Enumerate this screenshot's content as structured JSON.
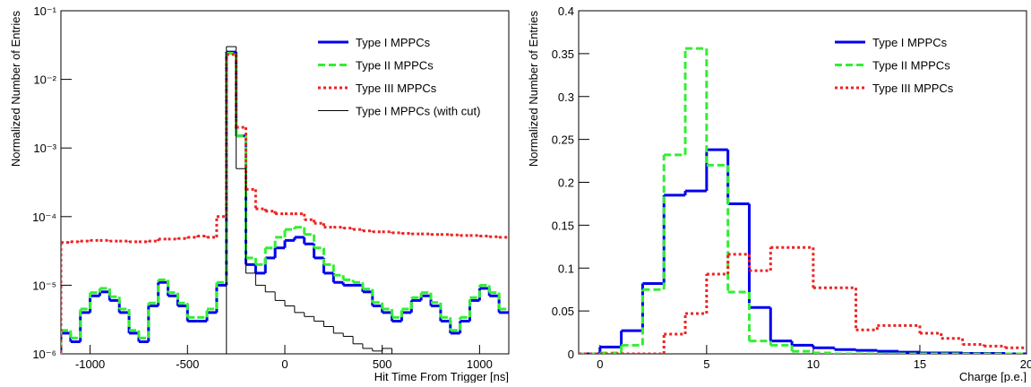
{
  "chart_data": [
    {
      "type": "histogram",
      "log_y": true,
      "x_label": "Hit Time From Trigger [ns]",
      "y_label": "Normalized Number of Entries",
      "xlim": [
        -1150,
        1150
      ],
      "xticks": [
        -1000,
        -500,
        0,
        500,
        1000
      ],
      "ylim": [
        1e-06,
        0.1
      ],
      "yticks": [
        {
          "value": 1e-06,
          "label": "10⁻⁶"
        },
        {
          "value": 1e-05,
          "label": "10⁻⁵"
        },
        {
          "value": 0.0001,
          "label": "10⁻⁴"
        },
        {
          "value": 0.001,
          "label": "10⁻³"
        },
        {
          "value": 0.01,
          "label": "10⁻²"
        },
        {
          "value": 0.1,
          "label": "10⁻¹"
        }
      ],
      "legend": "top-right",
      "bins": [
        -1150,
        -1100,
        -1050,
        -1000,
        -950,
        -900,
        -850,
        -800,
        -750,
        -700,
        -650,
        -600,
        -550,
        -500,
        -450,
        -400,
        -350,
        -300,
        -250,
        -200,
        -150,
        -100,
        -50,
        0,
        50,
        100,
        150,
        200,
        250,
        300,
        350,
        400,
        450,
        500,
        550,
        600,
        650,
        700,
        750,
        800,
        850,
        900,
        950,
        1000,
        1050,
        1100,
        1150
      ],
      "series": [
        {
          "name": "Type I MPPCs",
          "color": "#0000ee",
          "line_style": "solid",
          "width": 3,
          "values": [
            2e-06,
            1.5e-06,
            4e-06,
            7e-06,
            8e-06,
            6e-06,
            4e-06,
            2e-06,
            1.5e-06,
            5e-06,
            1.1e-05,
            7e-06,
            5e-06,
            3e-06,
            3e-06,
            4e-06,
            1e-05,
            0.025,
            0.0015,
            2e-05,
            1.5e-05,
            2.5e-05,
            3.5e-05,
            4.5e-05,
            5e-05,
            4e-05,
            2.5e-05,
            1.5e-05,
            1.1e-05,
            1e-05,
            1e-05,
            8e-06,
            5e-06,
            4e-06,
            3e-06,
            4e-06,
            6e-06,
            7e-06,
            5e-06,
            3e-06,
            2e-06,
            3e-06,
            6e-06,
            9e-06,
            7e-06,
            4e-06
          ]
        },
        {
          "name": "Type II MPPCs",
          "color": "#33ee33",
          "line_style": "dashed",
          "width": 3,
          "values": [
            2.2e-06,
            1.7e-06,
            4.5e-06,
            7.8e-06,
            9e-06,
            6.8e-06,
            4.5e-06,
            2.2e-06,
            1.7e-06,
            5.5e-06,
            1.2e-05,
            7.8e-06,
            5.5e-06,
            3.4e-06,
            3.4e-06,
            4.5e-06,
            1.1e-05,
            0.024,
            0.0015,
            2.5e-05,
            2e-05,
            3.5e-05,
            5e-05,
            6.5e-05,
            7e-05,
            5.5e-05,
            3.5e-05,
            2e-05,
            1.4e-05,
            1.2e-05,
            1.1e-05,
            8.8e-06,
            5.6e-06,
            4.5e-06,
            3.4e-06,
            4.5e-06,
            6.6e-06,
            7.8e-06,
            5.6e-06,
            3.4e-06,
            2.2e-06,
            3.4e-06,
            6.6e-06,
            1e-05,
            7.8e-06,
            4.5e-06
          ]
        },
        {
          "name": "Type III MPPCs",
          "color": "#ee2222",
          "line_style": "dotted",
          "width": 3,
          "values": [
            4.2e-05,
            4.3e-05,
            4.4e-05,
            4.5e-05,
            4.5e-05,
            4.4e-05,
            4.4e-05,
            4.3e-05,
            4.3e-05,
            4.4e-05,
            4.7e-05,
            4.7e-05,
            4.8e-05,
            5e-05,
            5.2e-05,
            5e-05,
            0.0001,
            0.023,
            0.002,
            0.00025,
            0.00013,
            0.00012,
            0.00011,
            0.00011,
            0.00011,
            9e-05,
            8e-05,
            7e-05,
            7e-05,
            6.8e-05,
            6.5e-05,
            6.2e-05,
            6e-05,
            6e-05,
            5.8e-05,
            5.7e-05,
            5.6e-05,
            5.6e-05,
            5.5e-05,
            5.5e-05,
            5.4e-05,
            5.3e-05,
            5.3e-05,
            5.2e-05,
            5.1e-05,
            5e-05
          ]
        },
        {
          "name": "Type I MPPCs (with cut)",
          "color": "#000000",
          "line_style": "solid",
          "width": 1,
          "values": [
            null,
            null,
            null,
            null,
            null,
            null,
            null,
            null,
            null,
            null,
            null,
            null,
            null,
            null,
            null,
            null,
            null,
            0.03,
            0.0005,
            1.5e-05,
            1e-05,
            8e-06,
            6e-06,
            5e-06,
            4e-06,
            3.5e-06,
            3e-06,
            2.5e-06,
            2e-06,
            1.8e-06,
            1.4e-06,
            1.2e-06,
            1.1e-06,
            1.2e-06,
            1e-06,
            null,
            null,
            null,
            null,
            null,
            null,
            null,
            null,
            null,
            null,
            null
          ]
        }
      ]
    },
    {
      "type": "histogram",
      "log_y": false,
      "x_label": "Charge [p.e.]",
      "y_label": "Normalized Number of Entries",
      "xlim": [
        -1,
        20
      ],
      "xticks": [
        0,
        5,
        10,
        15,
        20
      ],
      "ylim": [
        0,
        0.4
      ],
      "yticks": [
        0,
        0.05,
        0.1,
        0.15,
        0.2,
        0.25,
        0.3,
        0.35,
        0.4
      ],
      "legend": "top-right",
      "bins": [
        -1,
        0,
        1,
        2,
        3,
        4,
        5,
        6,
        7,
        8,
        9,
        10,
        11,
        12,
        13,
        14,
        15,
        16,
        17,
        18,
        19,
        20
      ],
      "series": [
        {
          "name": "Type I MPPCs",
          "color": "#0000ee",
          "line_style": "solid",
          "width": 3,
          "values": [
            0,
            0.008,
            0.027,
            0.082,
            0.185,
            0.19,
            0.238,
            0.175,
            0.054,
            0.015,
            0.01,
            0.007,
            0.005,
            0.004,
            0.003,
            0.002,
            0.001,
            0.001,
            0.0005,
            0.0005,
            0
          ]
        },
        {
          "name": "Type II MPPCs",
          "color": "#33ee33",
          "line_style": "dashed",
          "width": 3,
          "values": [
            0,
            0.001,
            0.01,
            0.075,
            0.232,
            0.356,
            0.22,
            0.072,
            0.015,
            0.01,
            0.003,
            0.001,
            0,
            0,
            0,
            0,
            0,
            0,
            0,
            0,
            0
          ]
        },
        {
          "name": "Type III MPPCs",
          "color": "#ee2222",
          "line_style": "dotted",
          "width": 3,
          "values": [
            0,
            0,
            0,
            0,
            0.023,
            0.047,
            0.093,
            0.116,
            0.097,
            0.124,
            0.124,
            0.077,
            0.077,
            0.028,
            0.033,
            0.033,
            0.024,
            0.018,
            0.011,
            0.009,
            0.007
          ]
        }
      ]
    }
  ]
}
